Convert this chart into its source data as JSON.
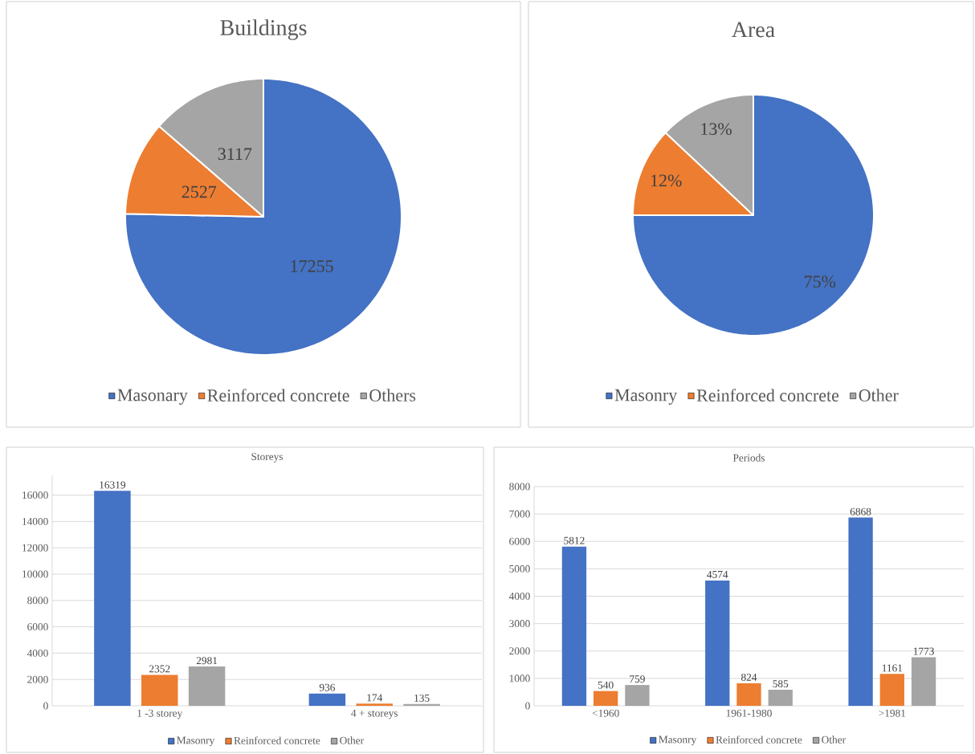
{
  "chart_data": [
    {
      "type": "pie",
      "title": "Buildings",
      "categories": [
        "Masonary",
        "Reinforced concrete",
        "Others"
      ],
      "values": [
        17255,
        2527,
        3117
      ],
      "colors": [
        "#4472c4",
        "#ed7d31",
        "#a5a5a5"
      ],
      "data_labels": true,
      "legend": "bottom"
    },
    {
      "type": "pie",
      "title": "Area",
      "categories": [
        "Masonry",
        "Reinforced concrete",
        "Other"
      ],
      "values": [
        75,
        12,
        13
      ],
      "value_labels": [
        "75%",
        "12%",
        "13%"
      ],
      "colors": [
        "#4472c4",
        "#ed7d31",
        "#a5a5a5"
      ],
      "legend": "bottom"
    },
    {
      "type": "bar",
      "title": "Storeys",
      "categories": [
        "1 -3 storey",
        "4 + storeys"
      ],
      "series": [
        {
          "name": "Masonry",
          "color": "#4472c4",
          "values": [
            16319,
            936
          ]
        },
        {
          "name": "Reinforced concrete",
          "color": "#ed7d31",
          "values": [
            2352,
            174
          ]
        },
        {
          "name": "Other",
          "color": "#a5a5a5",
          "values": [
            2981,
            135
          ]
        }
      ],
      "ylim": [
        0,
        17500
      ],
      "yticks": [
        0,
        2000,
        4000,
        6000,
        8000,
        10000,
        12000,
        14000,
        16000
      ],
      "grid": "y",
      "data_labels": true,
      "legend": "bottom"
    },
    {
      "type": "bar",
      "title": "Periods",
      "categories": [
        "<1960",
        "1961-1980",
        ">1981"
      ],
      "series": [
        {
          "name": "Masonry",
          "color": "#4472c4",
          "values": [
            5812,
            4574,
            6868
          ]
        },
        {
          "name": "Reinforced concrete",
          "color": "#ed7d31",
          "values": [
            540,
            824,
            1161
          ]
        },
        {
          "name": "Other",
          "color": "#a5a5a5",
          "values": [
            759,
            585,
            1773
          ]
        }
      ],
      "ylim": [
        0,
        8000
      ],
      "yticks": [
        0,
        1000,
        2000,
        3000,
        4000,
        5000,
        6000,
        7000,
        8000
      ],
      "grid": "y",
      "data_labels": true,
      "legend": "bottom"
    }
  ]
}
